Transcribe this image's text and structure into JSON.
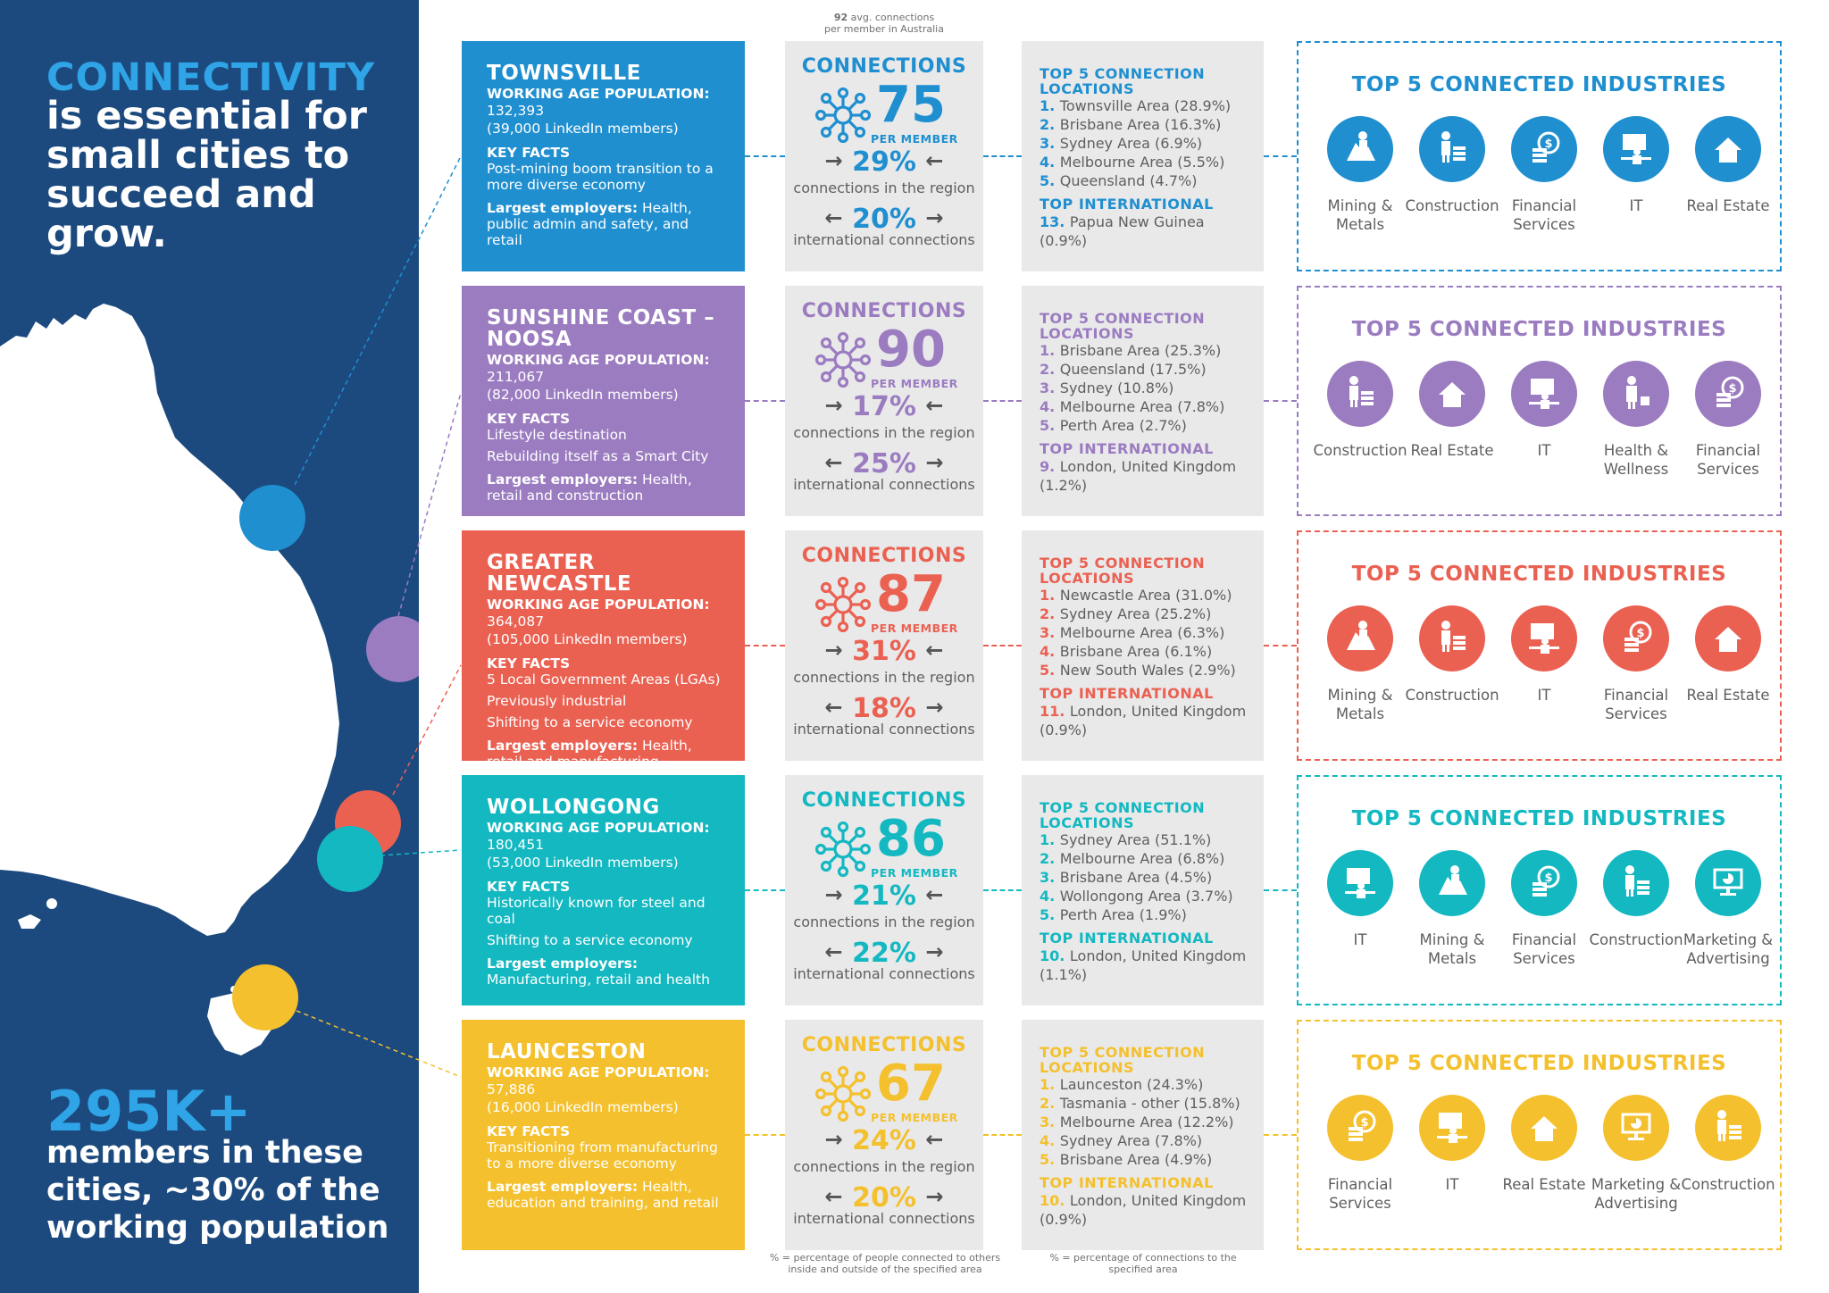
{
  "intro": {
    "title_highlight": "CONNECTIVITY",
    "title_rest": "is essential for small cities to succeed and grow.",
    "stat_big": "295K+",
    "stat_text": "members in these cities, ~30% of the working population"
  },
  "header_note": {
    "number": "92",
    "text": " avg. connections",
    "line2": "per member in Australia"
  },
  "footnotes": {
    "connections": "% = percentage of people connected to others inside and outside of the specified area",
    "locations": "% = percentage of connections to the specified area"
  },
  "labels": {
    "connections": "CONNECTIONS",
    "per_member": "PER MEMBER",
    "region": "connections in the region",
    "international": "international connections",
    "top5_locations": "TOP 5 CONNECTION LOCATIONS",
    "top_international": "TOP INTERNATIONAL",
    "top5_industries": "TOP 5 CONNECTED INDUSTRIES",
    "working_age": "WORKING AGE POPULATION:",
    "key_facts": "KEY FACTS",
    "largest_employers": "Largest employers:",
    "arrow_right": "→",
    "arrow_left": "←"
  },
  "colors": {
    "townsville": "#1f8fd0",
    "sunshine": "#9b7cc0",
    "newcastle": "#ea6152",
    "wollongong": "#13b8c1",
    "launceston": "#f4c02d",
    "navy": "#1c4a7e",
    "accent": "#2fa4e7"
  },
  "cities": [
    {
      "name": "TOWNSVILLE",
      "population": "132,393",
      "members": "(39,000 LinkedIn members)",
      "facts": [
        "Post-mining boom transition to a more diverse economy"
      ],
      "employers": "Health, public admin and safety, and retail",
      "connections": "75",
      "region_pct": "29%",
      "intl_pct": "20%",
      "locations": [
        "1. Townsville Area (28.9%)",
        "2. Brisbane Area (16.3%)",
        "3. Sydney Area (6.9%)",
        "4. Melbourne Area (5.5%)",
        "5. Queensland (4.7%)"
      ],
      "intl_location": "13. Papua New Guinea (0.9%)",
      "industries": [
        {
          "label": "Mining & Metals",
          "icon": "mining-icon"
        },
        {
          "label": "Construction",
          "icon": "construction-icon"
        },
        {
          "label": "Financial Services",
          "icon": "financial-icon"
        },
        {
          "label": "IT",
          "icon": "it-icon"
        },
        {
          "label": "Real Estate",
          "icon": "real-estate-icon"
        }
      ]
    },
    {
      "name": "SUNSHINE COAST – NOOSA",
      "population": "211,067",
      "members": "(82,000 LinkedIn members)",
      "facts": [
        "Lifestyle destination",
        "Rebuilding itself as a Smart City"
      ],
      "employers": "Health, retail and construction",
      "connections": "90",
      "region_pct": "17%",
      "intl_pct": "25%",
      "locations": [
        "1. Brisbane Area (25.3%)",
        "2. Queensland (17.5%)",
        "3. Sydney (10.8%)",
        "4. Melbourne Area (7.8%)",
        "5. Perth Area (2.7%)"
      ],
      "intl_location": "9. London, United Kingdom (1.2%)",
      "industries": [
        {
          "label": "Construction",
          "icon": "construction-icon"
        },
        {
          "label": "Real Estate",
          "icon": "real-estate-icon"
        },
        {
          "label": "IT",
          "icon": "it-icon"
        },
        {
          "label": "Health & Wellness",
          "icon": "health-icon"
        },
        {
          "label": "Financial Services",
          "icon": "financial-icon"
        }
      ]
    },
    {
      "name": "GREATER NEWCASTLE",
      "population": "364,087",
      "members": "(105,000 LinkedIn members)",
      "facts": [
        "5 Local Government Areas (LGAs)",
        "Previously industrial",
        "Shifting to a service economy"
      ],
      "employers": "Health, retail and manufacturing",
      "connections": "87",
      "region_pct": "31%",
      "intl_pct": "18%",
      "locations": [
        "1. Newcastle Area (31.0%)",
        "2. Sydney Area (25.2%)",
        "3. Melbourne Area (6.3%)",
        "4. Brisbane Area (6.1%)",
        "5. New South Wales (2.9%)"
      ],
      "intl_location": "11. London, United Kingdom (0.9%)",
      "industries": [
        {
          "label": "Mining & Metals",
          "icon": "mining-icon"
        },
        {
          "label": "Construction",
          "icon": "construction-icon"
        },
        {
          "label": "IT",
          "icon": "it-icon"
        },
        {
          "label": "Financial Services",
          "icon": "financial-icon"
        },
        {
          "label": "Real Estate",
          "icon": "real-estate-icon"
        }
      ]
    },
    {
      "name": "WOLLONGONG",
      "population": "180,451",
      "members": "(53,000 LinkedIn members)",
      "facts": [
        "Historically known for steel and coal",
        "Shifting to a service economy"
      ],
      "employers": "Manufacturing, retail and health",
      "connections": "86",
      "region_pct": "21%",
      "intl_pct": "22%",
      "locations": [
        "1. Sydney Area (51.1%)",
        "2. Melbourne Area (6.8%)",
        "3. Brisbane Area (4.5%)",
        "4. Wollongong Area (3.7%)",
        "5. Perth Area (1.9%)"
      ],
      "intl_location": "10. London, United Kingdom (1.1%)",
      "industries": [
        {
          "label": "IT",
          "icon": "it-icon"
        },
        {
          "label": "Mining & Metals",
          "icon": "mining-icon"
        },
        {
          "label": "Financial Services",
          "icon": "financial-icon"
        },
        {
          "label": "Construction",
          "icon": "construction-icon"
        },
        {
          "label": "Marketing & Advertising",
          "icon": "marketing-icon"
        }
      ]
    },
    {
      "name": "LAUNCESTON",
      "population": "57,886",
      "members": "(16,000 LinkedIn members)",
      "facts": [
        "Transitioning from manufacturing to a more diverse economy"
      ],
      "employers": "Health, education and training, and retail",
      "connections": "67",
      "region_pct": "24%",
      "intl_pct": "20%",
      "locations": [
        "1. Launceston (24.3%)",
        "2. Tasmania - other (15.8%)",
        "3. Melbourne Area (12.2%)",
        "4. Sydney Area (7.8%)",
        "5. Brisbane Area (4.9%)"
      ],
      "intl_location": "10. London, United Kingdom (0.9%)",
      "industries": [
        {
          "label": "Financial Services",
          "icon": "financial-icon"
        },
        {
          "label": "IT",
          "icon": "it-icon"
        },
        {
          "label": "Real Estate",
          "icon": "real-estate-icon"
        },
        {
          "label": "Marketing & Advertising",
          "icon": "marketing-icon"
        },
        {
          "label": "Construction",
          "icon": "construction-icon"
        }
      ]
    }
  ]
}
